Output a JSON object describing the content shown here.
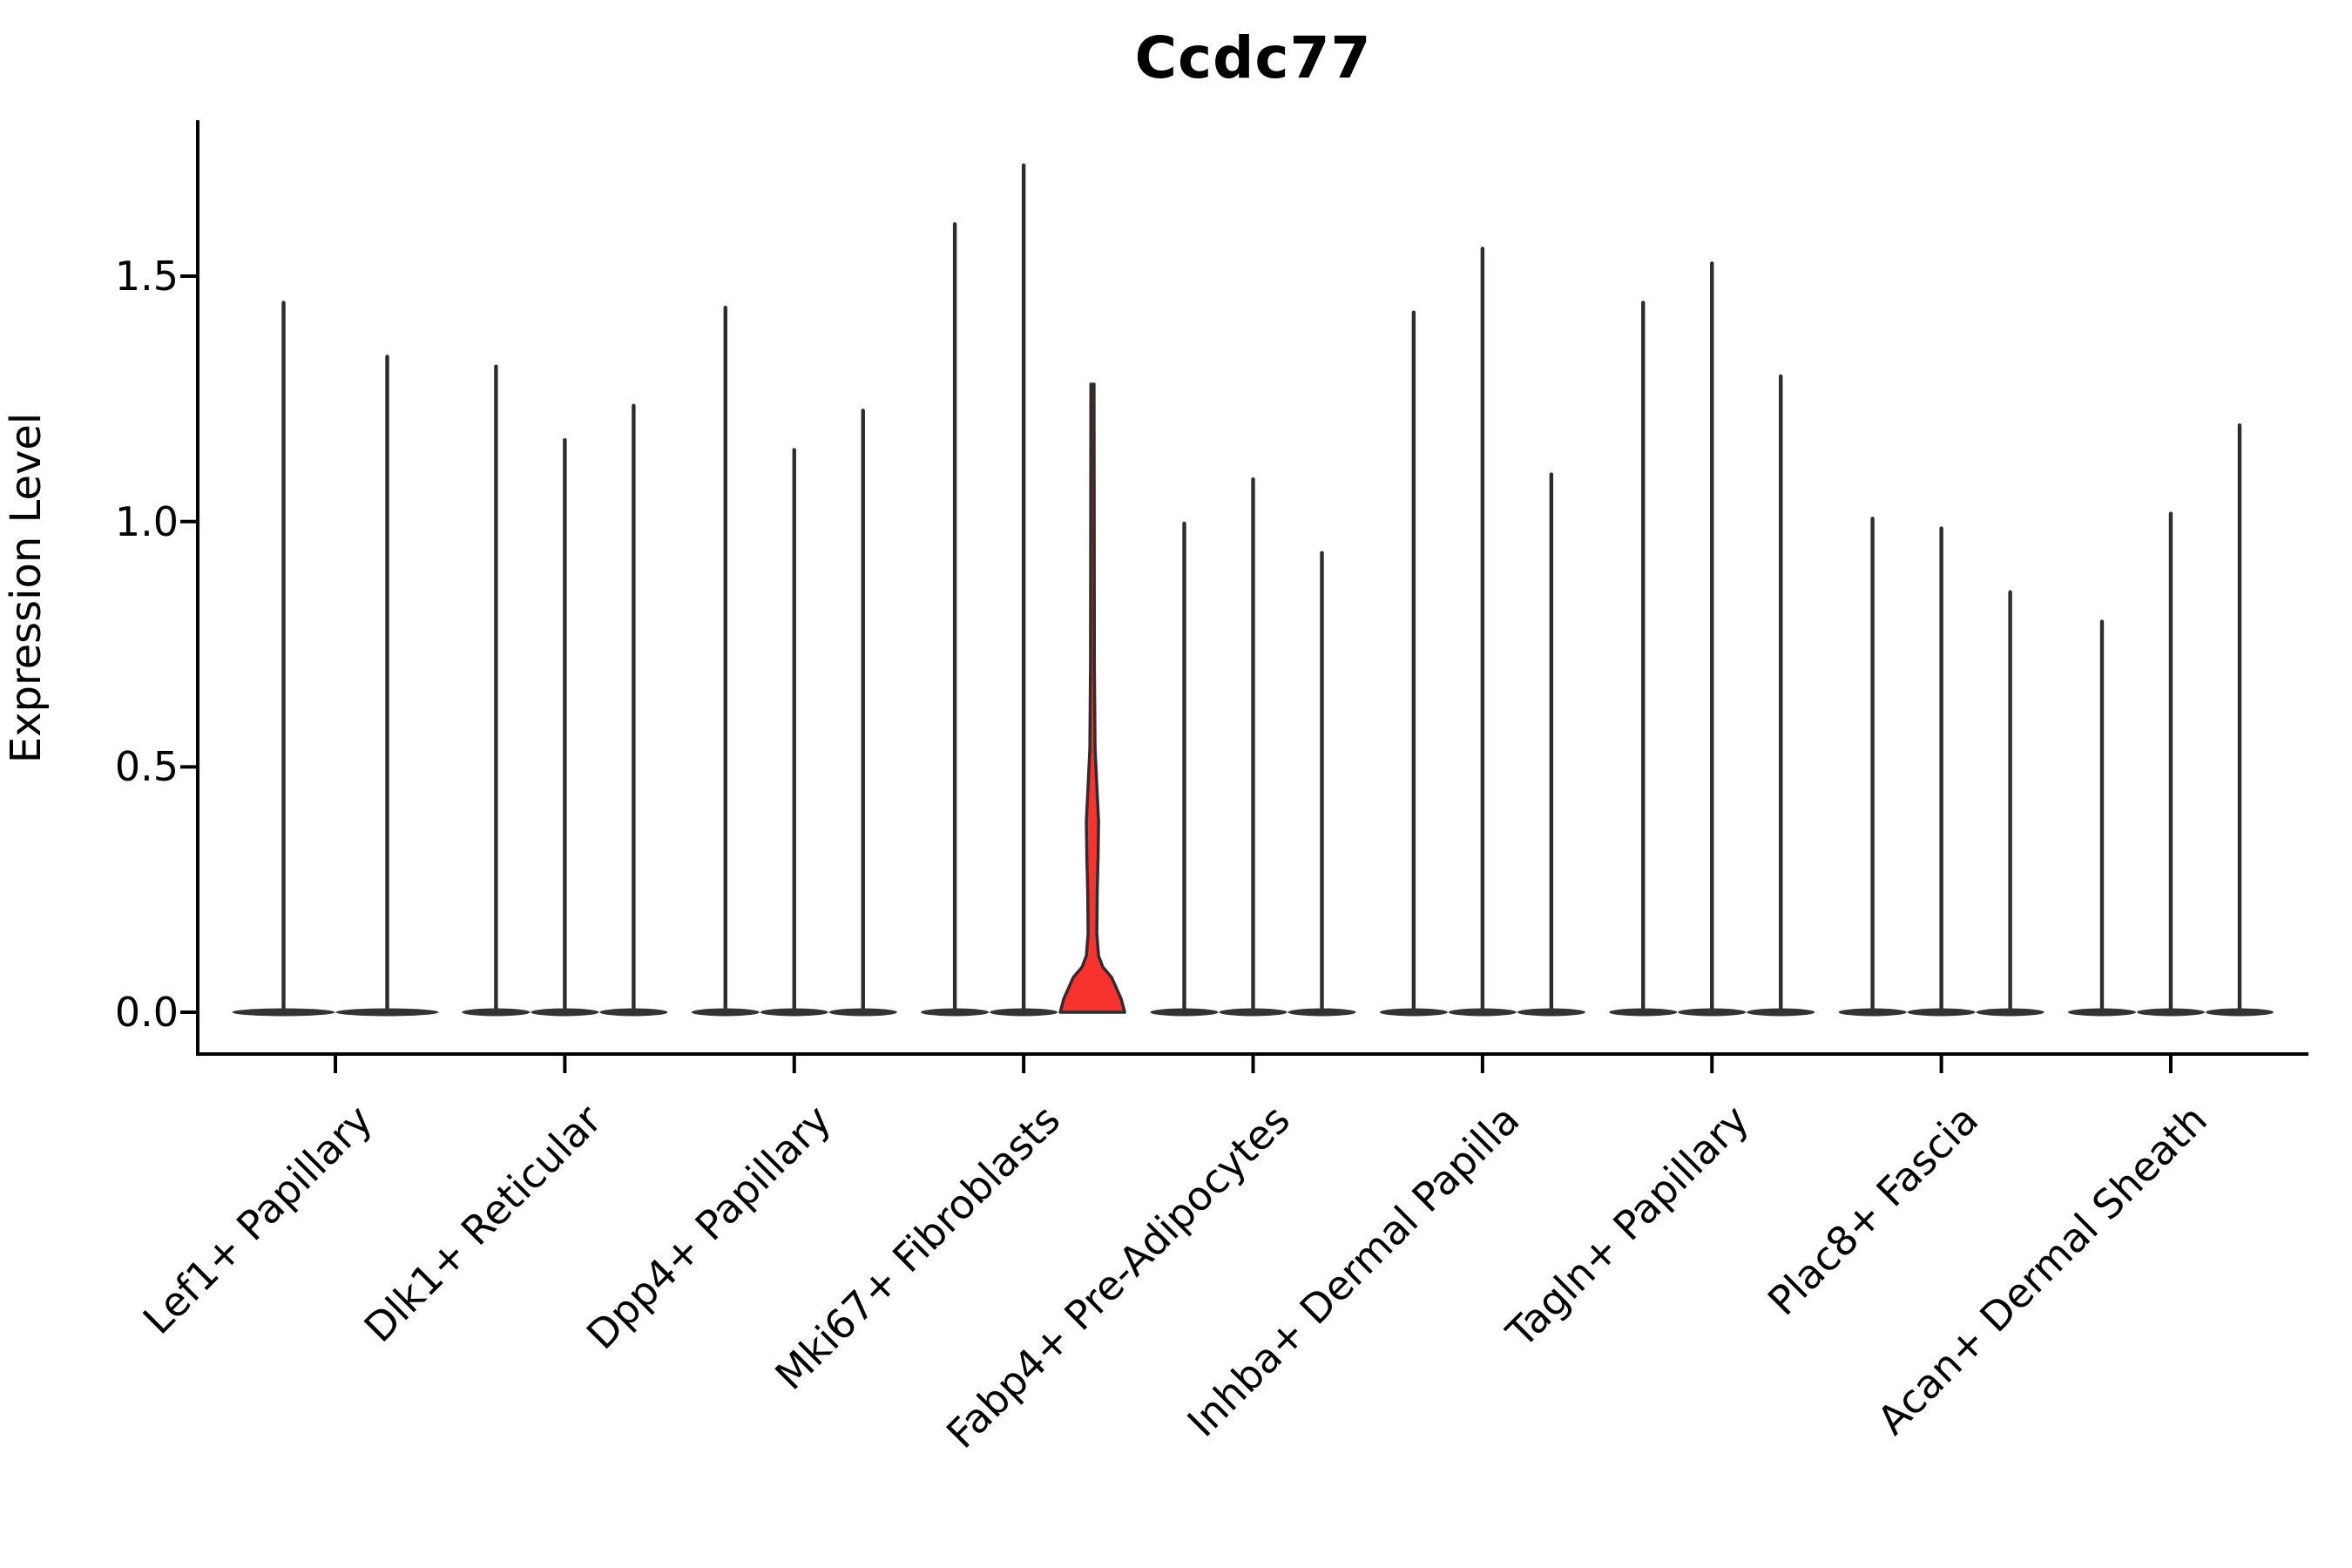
{
  "title": "Ccdc77",
  "axes": {
    "ylabel": "Expression Level",
    "y_tick_labels": [
      "0.0",
      "0.5",
      "1.0",
      "1.5"
    ],
    "grid": false,
    "top_spine": false,
    "right_spine": false
  },
  "colors": {
    "spike": "#2d2d2d",
    "base_blob": "#333333",
    "highlight_fill": "#f8332f",
    "highlight_stroke": "#2d2d2d",
    "axis": "#000000",
    "text": "#000000"
  },
  "chart_data": {
    "type": "violin",
    "title": "Ccdc77",
    "xlabel": "",
    "ylabel": "Expression Level",
    "ylim": [
      -0.085,
      1.815
    ],
    "y_ticks": [
      0.0,
      0.5,
      1.0,
      1.5
    ],
    "legend": "none",
    "description": "Violin plot of Ccdc77 expression per fibroblast cluster; each cluster holds 2-3 near-zero spike-shaped violins (max expression listed); one violin in Mki67+ Fibroblasts is filled red with visible density bulge near 0.",
    "groups": [
      {
        "label": "Lef1+ Papillary",
        "violins": [
          {
            "dx": -59.5,
            "hw": 59,
            "max": 1.45
          },
          {
            "dx": 59.5,
            "hw": 59,
            "max": 1.34
          }
        ]
      },
      {
        "label": "Dlk1+ Reticular",
        "violins": [
          {
            "dx": -79,
            "hw": 39,
            "max": 1.32
          },
          {
            "dx": 0,
            "hw": 39,
            "max": 1.17
          },
          {
            "dx": 79,
            "hw": 39,
            "max": 1.24
          }
        ]
      },
      {
        "label": "Dpp4+ Papillary",
        "violins": [
          {
            "dx": -79,
            "hw": 39,
            "max": 1.44
          },
          {
            "dx": 0,
            "hw": 39,
            "max": 1.15
          },
          {
            "dx": 79,
            "hw": 39,
            "max": 1.23
          }
        ]
      },
      {
        "label": "Mki67+ Fibroblasts",
        "violins": [
          {
            "dx": -79,
            "hw": 39,
            "max": 1.61
          },
          {
            "dx": 0,
            "hw": 39,
            "max": 1.73
          },
          {
            "dx": 79,
            "hw": 38,
            "max": 1.28,
            "highlight": true
          }
        ]
      },
      {
        "label": "Fabp4+ Pre-Adipocytes",
        "violins": [
          {
            "dx": -79,
            "hw": 39,
            "max": 1.0
          },
          {
            "dx": 0,
            "hw": 39,
            "max": 1.09
          },
          {
            "dx": 79,
            "hw": 39,
            "max": 0.94
          }
        ]
      },
      {
        "label": "Inhba+ Dermal Papilla",
        "violins": [
          {
            "dx": -79,
            "hw": 39,
            "max": 1.43
          },
          {
            "dx": 0,
            "hw": 39,
            "max": 1.56
          },
          {
            "dx": 79,
            "hw": 39,
            "max": 1.1
          }
        ]
      },
      {
        "label": "Tagln+ Papillary",
        "violins": [
          {
            "dx": -79,
            "hw": 39,
            "max": 1.45
          },
          {
            "dx": 0,
            "hw": 39,
            "max": 1.53
          },
          {
            "dx": 79,
            "hw": 39,
            "max": 1.3
          }
        ]
      },
      {
        "label": "Plac8+ Fascia",
        "violins": [
          {
            "dx": -79,
            "hw": 39,
            "max": 1.01
          },
          {
            "dx": 0,
            "hw": 39,
            "max": 0.99
          },
          {
            "dx": 79,
            "hw": 39,
            "max": 0.86
          }
        ]
      },
      {
        "label": "Acan+ Dermal Sheath",
        "violins": [
          {
            "dx": -79,
            "hw": 39,
            "max": 0.8
          },
          {
            "dx": 0,
            "hw": 39,
            "max": 1.02
          },
          {
            "dx": 79,
            "hw": 39,
            "max": 1.2
          }
        ]
      }
    ],
    "highlight_profile": [
      [
        0.0,
        37.0
      ],
      [
        0.027,
        33.0
      ],
      [
        0.071,
        22.0
      ],
      [
        0.092,
        12.0
      ],
      [
        0.115,
        7.0
      ],
      [
        0.16,
        5.0
      ],
      [
        0.249,
        5.5
      ],
      [
        0.32,
        6.5
      ],
      [
        0.389,
        7.0
      ],
      [
        0.444,
        5.5
      ],
      [
        0.5,
        4.0
      ],
      [
        0.536,
        3.0
      ],
      [
        0.71,
        2.2
      ],
      [
        1.28,
        1.8
      ]
    ]
  }
}
